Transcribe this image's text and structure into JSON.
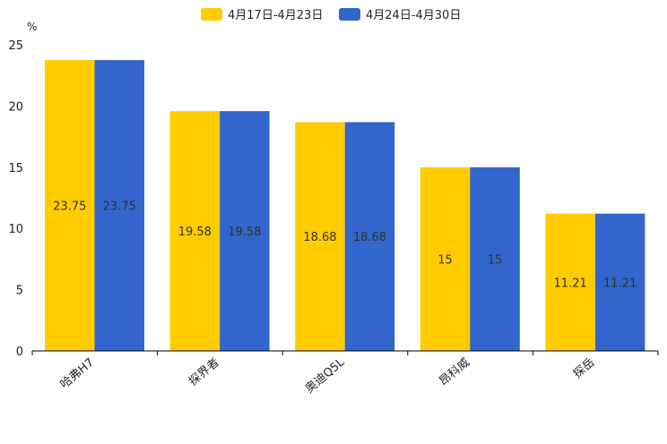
{
  "chart_data": {
    "type": "bar",
    "title": "",
    "ylabel": "%",
    "xlabel": "",
    "ylim": [
      0,
      25
    ],
    "yticks": [
      0,
      5,
      10,
      15,
      20,
      25
    ],
    "categories": [
      "哈弗H7",
      "探界者",
      "奥迪Q5L",
      "昂科威",
      "探岳"
    ],
    "series": [
      {
        "name": "4月17日-4月23日",
        "color": "#ffcc00",
        "values": [
          23.75,
          19.58,
          18.68,
          15,
          11.21
        ]
      },
      {
        "name": "4月24日-4月30日",
        "color": "#3366cc",
        "values": [
          23.75,
          19.58,
          18.68,
          15,
          11.21
        ]
      }
    ],
    "legend_position": "top-center",
    "grid": false
  }
}
